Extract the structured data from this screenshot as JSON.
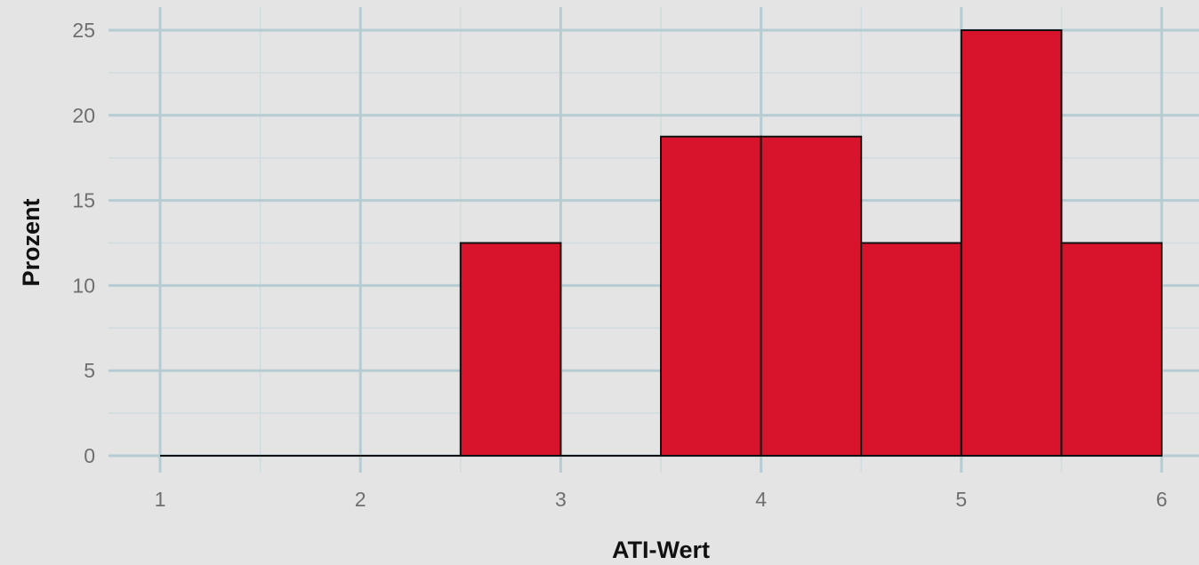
{
  "chart_data": {
    "type": "bar",
    "subtype": "histogram",
    "xlabel": "ATI-Wert",
    "ylabel": "Prozent",
    "xlim": [
      1,
      6
    ],
    "ylim": [
      0,
      25
    ],
    "x_ticks": [
      "1",
      "2",
      "3",
      "4",
      "5",
      "6"
    ],
    "y_ticks": [
      "0",
      "5",
      "10",
      "15",
      "20",
      "25"
    ],
    "bin_width": 0.5,
    "bins": [
      {
        "start": 1.0,
        "end": 1.5,
        "value": 0
      },
      {
        "start": 1.5,
        "end": 2.0,
        "value": 0
      },
      {
        "start": 2.0,
        "end": 2.5,
        "value": 0
      },
      {
        "start": 2.5,
        "end": 3.0,
        "value": 12.5
      },
      {
        "start": 3.0,
        "end": 3.5,
        "value": 0
      },
      {
        "start": 3.5,
        "end": 4.0,
        "value": 18.75
      },
      {
        "start": 4.0,
        "end": 4.5,
        "value": 18.75
      },
      {
        "start": 4.5,
        "end": 5.0,
        "value": 12.5
      },
      {
        "start": 5.0,
        "end": 5.5,
        "value": 25
      },
      {
        "start": 5.5,
        "end": 6.0,
        "value": 12.5
      }
    ],
    "grid": true,
    "legend": "none",
    "bar_color": "#d7142b",
    "bar_edge_color": "#111111",
    "background_color": "#e4e4e4",
    "grid_color": "#b5cdd2"
  }
}
